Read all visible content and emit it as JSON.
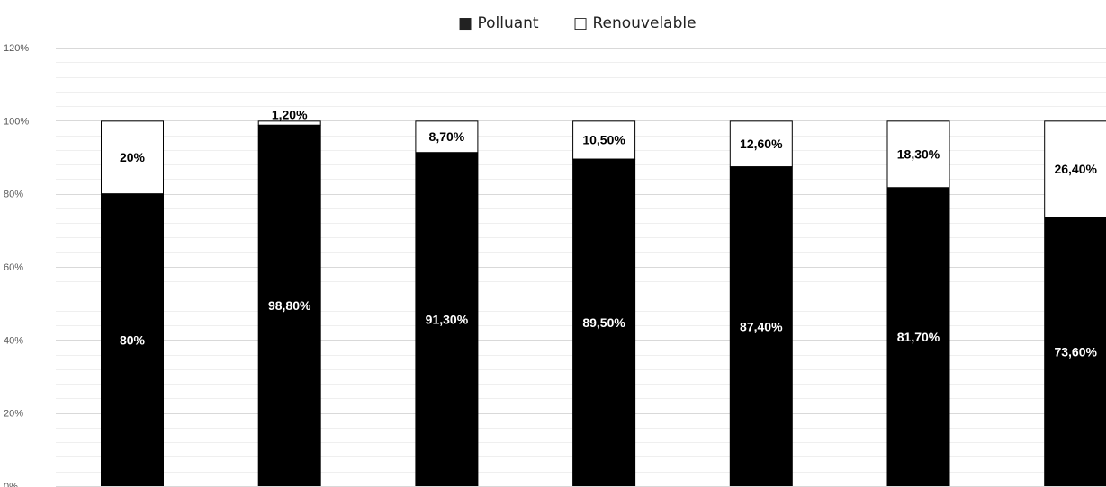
{
  "chart_data": {
    "type": "bar",
    "stacked": true,
    "percent_stacked": true,
    "categories": [
      "",
      "",
      "",
      "",
      "",
      "",
      ""
    ],
    "series": [
      {
        "name": "Polluant",
        "color": "#000000",
        "values": [
          80,
          98.8,
          91.3,
          89.5,
          87.4,
          81.7,
          73.6
        ],
        "labels": [
          "80%",
          "98,80%",
          "91,30%",
          "89,50%",
          "87,40%",
          "81,70%",
          "73,60%"
        ]
      },
      {
        "name": "Renouvelable",
        "color": "#ffffff",
        "values": [
          20,
          1.2,
          8.7,
          10.5,
          12.6,
          18.3,
          26.4
        ],
        "labels": [
          "20%",
          "1,20%",
          "8,70%",
          "10,50%",
          "12,60%",
          "18,30%",
          "26,40%"
        ]
      }
    ],
    "ylim": [
      0,
      120
    ],
    "yticks": [
      "0%",
      "20%",
      "40%",
      "60%",
      "80%",
      "100%",
      "120%"
    ],
    "title": "",
    "xlabel": "",
    "ylabel": "",
    "grid": true,
    "legend": {
      "position": "top",
      "entries": [
        {
          "symbol": "■",
          "label": "Polluant"
        },
        {
          "symbol": "□",
          "label": "Renouvelable"
        }
      ]
    }
  }
}
